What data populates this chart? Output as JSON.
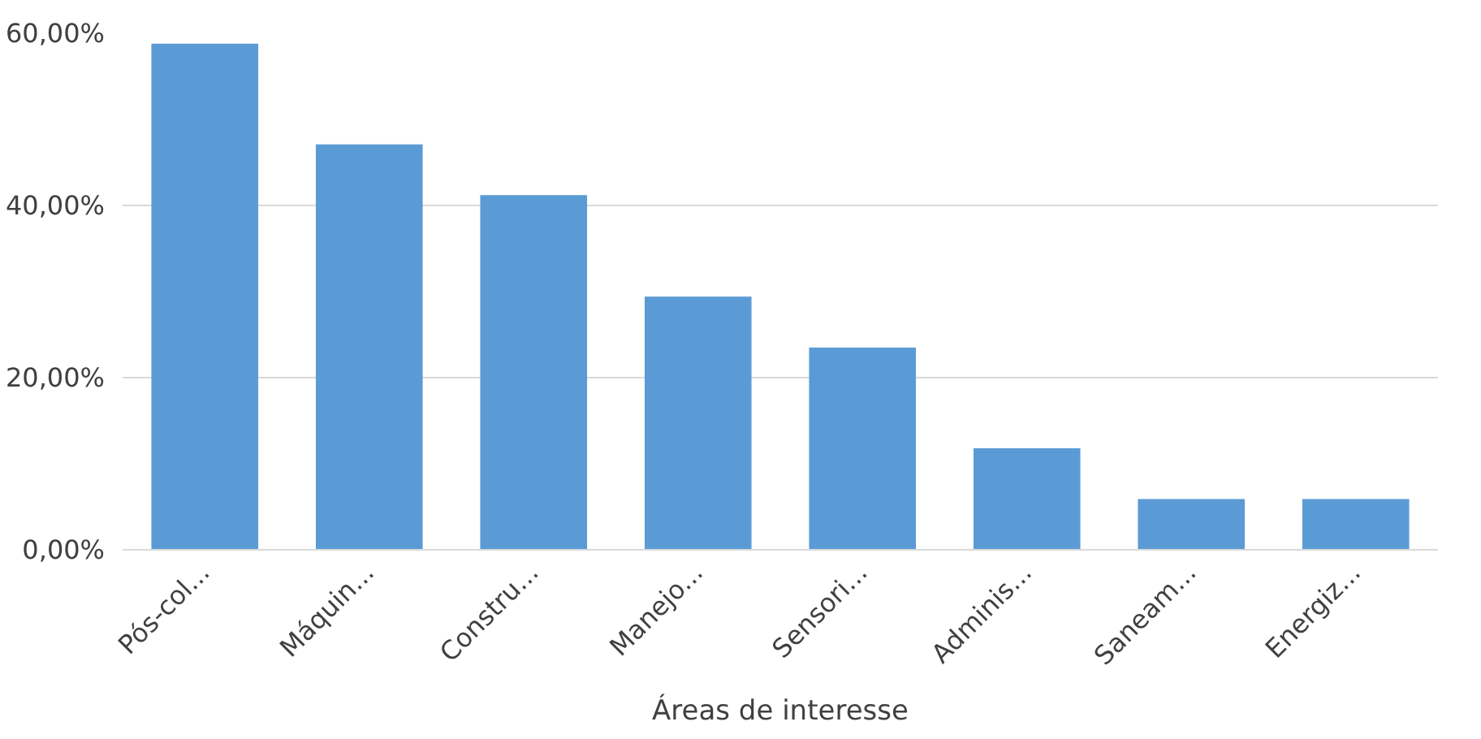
{
  "chart_data": {
    "type": "bar",
    "xlabel": "Áreas de interesse",
    "categories": [
      "Pós-col...",
      "Máquin...",
      "Constru...",
      "Manejo...",
      "Sensori...",
      "Adminis...",
      "Saneam...",
      "Energiz..."
    ],
    "values": [
      58.8,
      47.1,
      41.2,
      29.4,
      23.5,
      11.8,
      5.9,
      5.9
    ],
    "color": "#5b9bd5",
    "ylim": [
      0,
      60
    ],
    "yticks": [
      {
        "value": 0,
        "label": "0,00%"
      },
      {
        "value": 20,
        "label": "20,00%"
      },
      {
        "value": 40,
        "label": "40,00%"
      },
      {
        "value": 60,
        "label": "60,00%"
      }
    ],
    "grid": "y"
  }
}
